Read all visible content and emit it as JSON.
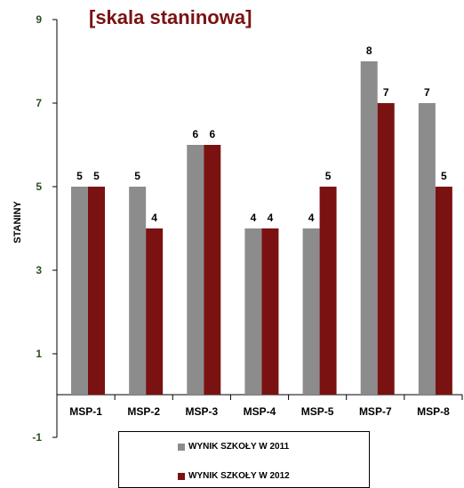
{
  "chart_data": {
    "type": "bar",
    "title": "[skala staninowa]",
    "ylabel": "STANINY",
    "xlabel": "",
    "categories": [
      "MSP-1",
      "MSP-2",
      "MSP-3",
      "MSP-4",
      "MSP-5",
      "MSP-7",
      "MSP-8"
    ],
    "series": [
      {
        "name": "WYNIK SZKOŁY W 2011",
        "color": "#8c8c8c",
        "values": [
          5,
          5,
          6,
          4,
          4,
          8,
          7
        ]
      },
      {
        "name": "WYNIK SZKOŁY W 2012",
        "color": "#7a1212",
        "values": [
          5,
          4,
          6,
          4,
          5,
          7,
          5
        ]
      }
    ],
    "ylim": [
      -1,
      9
    ],
    "yticks": [
      "9",
      "7",
      "5",
      "3",
      "1",
      "-1"
    ],
    "grid": false,
    "legend": "bottom"
  }
}
